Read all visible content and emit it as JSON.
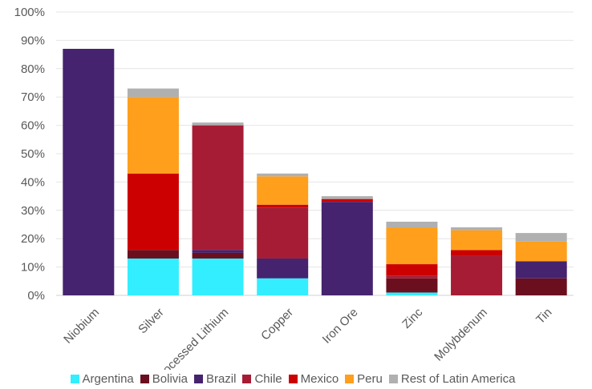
{
  "chart_data": {
    "type": "bar",
    "stacked": true,
    "categories": [
      "Niobium",
      "Silver",
      "Processed Lithium",
      "Copper",
      "Iron Ore",
      "Zinc",
      "Molybdenum",
      "Tin"
    ],
    "y_ticks": [
      "0%",
      "10%",
      "20%",
      "30%",
      "40%",
      "50%",
      "60%",
      "70%",
      "80%",
      "90%",
      "100%"
    ],
    "ylim": [
      0,
      100
    ],
    "grid": true,
    "legend_position": "bottom",
    "series": [
      {
        "name": "Argentina",
        "color": "#33EEFF",
        "values": [
          0,
          13,
          13,
          6,
          0,
          1,
          0,
          0
        ]
      },
      {
        "name": "Bolivia",
        "color": "#6B0F1E",
        "values": [
          0,
          3,
          2,
          0,
          0,
          5,
          0,
          6
        ]
      },
      {
        "name": "Brazil",
        "color": "#45236F",
        "values": [
          87,
          0,
          1,
          7,
          33,
          0,
          0,
          6
        ]
      },
      {
        "name": "Chile",
        "color": "#A61C35",
        "values": [
          0,
          0,
          44,
          18,
          0,
          1,
          14,
          0
        ]
      },
      {
        "name": "Mexico",
        "color": "#CC0000",
        "values": [
          0,
          27,
          0,
          1,
          1,
          4,
          2,
          0
        ]
      },
      {
        "name": "Peru",
        "color": "#FF9F1C",
        "values": [
          0,
          27,
          0,
          10,
          0,
          13,
          7,
          7
        ]
      },
      {
        "name": "Rest of Latin America",
        "color": "#B0B0B0",
        "values": [
          0,
          3,
          1,
          1,
          1,
          2,
          1,
          3
        ]
      }
    ]
  }
}
